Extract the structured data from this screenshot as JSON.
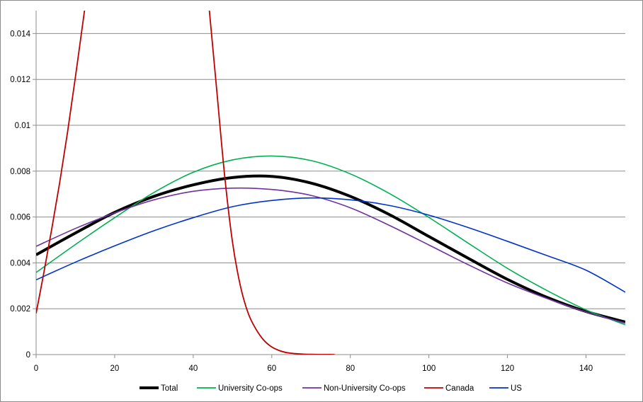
{
  "chart_data": {
    "type": "line",
    "title": "",
    "xlabel": "",
    "ylabel": "",
    "xlim": [
      0,
      150
    ],
    "ylim": [
      0,
      0.015
    ],
    "x_ticks": [
      0,
      20,
      40,
      60,
      80,
      100,
      120,
      140
    ],
    "y_ticks": [
      0,
      0.002,
      0.004,
      0.006,
      0.008,
      0.01,
      0.012,
      0.014
    ],
    "x_tick_labels": [
      "0",
      "20",
      "40",
      "60",
      "80",
      "100",
      "120",
      "140"
    ],
    "y_tick_labels": [
      "0",
      "0.002",
      "0.004",
      "0.006",
      "0.008",
      "0.01",
      "0.012",
      "0.014"
    ],
    "grid": "horizontal",
    "legend_position": "bottom",
    "series": [
      {
        "name": "Total",
        "color": "#000000",
        "x": [
          0,
          10,
          20,
          30,
          40,
          50,
          60,
          70,
          80,
          90,
          100,
          110,
          120,
          130,
          140,
          150
        ],
        "values": [
          0.00435,
          0.0053,
          0.0062,
          0.0069,
          0.0074,
          0.00772,
          0.00777,
          0.00748,
          0.0069,
          0.0061,
          0.00515,
          0.0042,
          0.00328,
          0.0025,
          0.00188,
          0.00142
        ]
      },
      {
        "name": "University Co-ops",
        "color": "#00b050",
        "x": [
          0,
          10,
          20,
          30,
          40,
          50,
          60,
          70,
          80,
          90,
          100,
          110,
          120,
          130,
          140,
          150
        ],
        "values": [
          0.00358,
          0.0048,
          0.00597,
          0.00707,
          0.00795,
          0.00849,
          0.00866,
          0.00846,
          0.00788,
          0.00702,
          0.00598,
          0.00486,
          0.00376,
          0.0028,
          0.00195,
          0.0013
        ]
      },
      {
        "name": "Non-University Co-ops",
        "color": "#7030a0",
        "x": [
          0,
          10,
          20,
          30,
          40,
          50,
          60,
          70,
          80,
          90,
          100,
          110,
          120,
          130,
          140,
          150
        ],
        "values": [
          0.00472,
          0.0055,
          0.00618,
          0.00675,
          0.00712,
          0.00726,
          0.0072,
          0.00694,
          0.0064,
          0.00563,
          0.00478,
          0.00392,
          0.00312,
          0.00245,
          0.00186,
          0.00137
        ]
      },
      {
        "name": "Canada",
        "color": "#c00000",
        "x": [
          0,
          2,
          4,
          6,
          8,
          10,
          12,
          13.5,
          44,
          46,
          48,
          50,
          52,
          54,
          56,
          58,
          60,
          62,
          64,
          66,
          68,
          70,
          72,
          74,
          76
        ],
        "values": [
          0.0018,
          0.0036,
          0.0055,
          0.0075,
          0.0097,
          0.0121,
          0.0146,
          0.0165,
          0.0152,
          0.0115,
          0.0078,
          0.0049,
          0.003,
          0.0018,
          0.0011,
          0.00062,
          0.00033,
          0.00017,
          8e-05,
          4e-05,
          2e-05,
          1e-05,
          5e-06,
          2e-06,
          1e-06
        ]
      },
      {
        "name": "US",
        "color": "#0033cc",
        "x": [
          0,
          10,
          20,
          30,
          40,
          50,
          60,
          70,
          80,
          90,
          100,
          110,
          120,
          130,
          140,
          150
        ],
        "values": [
          0.00326,
          0.00403,
          0.00474,
          0.0054,
          0.00597,
          0.00645,
          0.00672,
          0.00683,
          0.00675,
          0.0065,
          0.00608,
          0.00554,
          0.00494,
          0.00432,
          0.00368,
          0.00272
        ]
      }
    ]
  }
}
